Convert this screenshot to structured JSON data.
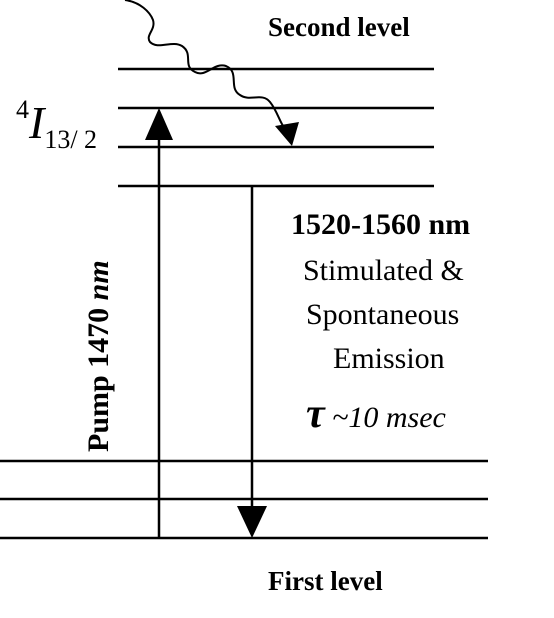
{
  "diagram": {
    "labels": {
      "upper_level": "Second level",
      "lower_level": "First level",
      "state_superscript": "4",
      "state_symbol": "I",
      "state_subscript": "13/ 2",
      "pump": "Pump 1470 nm",
      "pump_main": "Pump 1470 ",
      "pump_unit": "nm",
      "emission_band": "1520-1560 nm",
      "emission_line1": "Stimulated &",
      "emission_line2": "Spontaneous",
      "emission_line3": "Emission",
      "lifetime": "τ ~10 msec",
      "lifetime_symbol": "τ",
      "lifetime_value": "~10 msec"
    },
    "colors": {
      "line": "#000000",
      "background": "#ffffff"
    }
  }
}
